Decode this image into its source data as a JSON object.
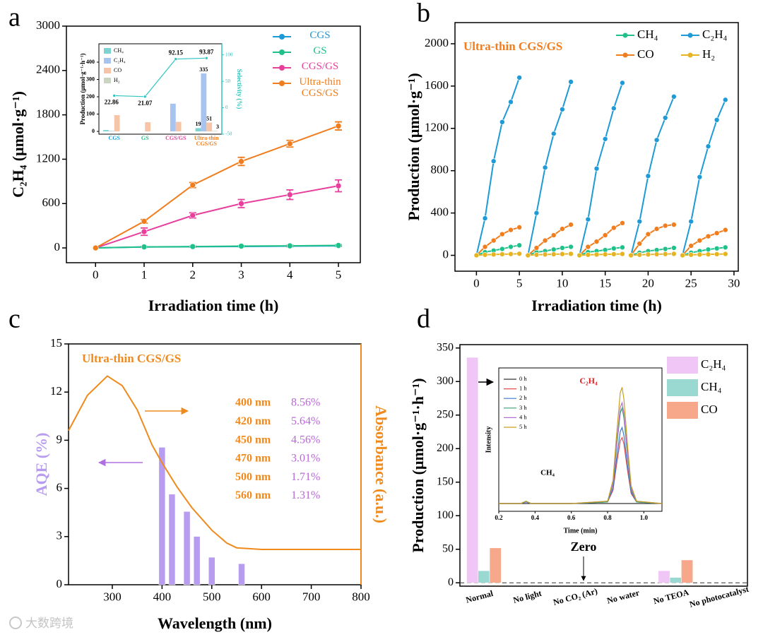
{
  "chart_data": [
    {
      "type": "line",
      "label": "a",
      "xlabel": "Irradiation time (h)",
      "ylabel": "C₂H₄ (μmol·g⁻¹)",
      "x": [
        0,
        1,
        2,
        3,
        4,
        5
      ],
      "xlim": [
        -0.6,
        5.45
      ],
      "xticks": [
        0,
        1,
        2,
        3,
        4,
        5
      ],
      "ylim": [
        -200,
        3000
      ],
      "yticks": [
        0,
        600,
        1200,
        1800,
        2400,
        3000
      ],
      "markers": true,
      "legend": "upper right",
      "series": [
        {
          "name": "CGS",
          "color": "#1e9ad6",
          "values": [
            0,
            12,
            16,
            20,
            24,
            28
          ],
          "errors": [
            0,
            5,
            6,
            6,
            8,
            8
          ]
        },
        {
          "name": "GS",
          "color": "#20c08a",
          "values": [
            0,
            14,
            18,
            24,
            28,
            34
          ],
          "errors": [
            0,
            5,
            6,
            7,
            8,
            9
          ]
        },
        {
          "name": "CGS/GS",
          "color": "#e83e9c",
          "values": [
            0,
            220,
            440,
            600,
            720,
            840
          ],
          "errors": [
            0,
            50,
            35,
            55,
            65,
            80
          ]
        },
        {
          "name": "Ultra-thin CGS/GS",
          "color": "#f07d1e",
          "values": [
            0,
            360,
            850,
            1170,
            1410,
            1650
          ],
          "errors": [
            0,
            25,
            35,
            55,
            45,
            55
          ]
        }
      ]
    },
    {
      "type": "bar",
      "categories": [
        "CGS",
        "GS",
        "CGS/GS",
        "Ultra-thin CGS/GS"
      ],
      "category_colors": [
        "#1e9ad6",
        "#20c08a",
        "#e83e9c",
        "#f07d1e"
      ],
      "ylabel": "Production (μmol·g⁻¹·h⁻¹)",
      "y2label": "Selectivity (%)",
      "ylim": [
        -16,
        506
      ],
      "yticks": [
        0,
        100,
        200,
        300,
        400
      ],
      "y2lim": [
        -50,
        121
      ],
      "y2ticks": [
        -50,
        0,
        50,
        100
      ],
      "markers": true,
      "legend": "upper left",
      "series": [
        {
          "name": "CH₄",
          "color": "#7dd3cf",
          "values": [
            8,
            0,
            0,
            19
          ],
          "value_labels": [
            null,
            null,
            null,
            "19"
          ]
        },
        {
          "name": "C₂H₄",
          "color": "#a7c3f0",
          "values": [
            3,
            0,
            160,
            335
          ],
          "value_labels": [
            null,
            null,
            null,
            "335"
          ]
        },
        {
          "name": "CO",
          "color": "#f6c4a6",
          "values": [
            94,
            53,
            55,
            51
          ],
          "value_labels": [
            null,
            null,
            null,
            "51"
          ]
        },
        {
          "name": "H₂",
          "color": "#c9d5c2",
          "values": [
            0,
            0,
            0,
            3
          ],
          "value_labels": [
            null,
            null,
            null,
            "3"
          ]
        },
        {
          "type": "line",
          "axis": "y2",
          "color": "#2ec4c0",
          "values": [
            22.86,
            21.07,
            92.15,
            93.87
          ],
          "value_labels": [
            "22.86",
            "21.07",
            "92.15",
            "93.87"
          ]
        }
      ]
    },
    {
      "type": "line",
      "label": "b",
      "xlabel": "Irradiation time (h)",
      "ylabel": "Production (μmol·g⁻¹)",
      "annotations": [
        "Ultra-thin CGS/GS"
      ],
      "x": [
        0,
        1,
        2,
        3,
        4,
        5,
        6,
        7,
        8,
        9,
        10,
        11,
        12,
        13,
        14,
        15,
        16,
        17,
        18,
        19,
        20,
        21,
        22,
        23,
        24,
        25,
        26,
        27,
        28,
        29
      ],
      "cycles": 5,
      "xlim": [
        -2.5,
        30.5
      ],
      "xticks": [
        0,
        5,
        10,
        15,
        20,
        25,
        30
      ],
      "ylim": [
        -150,
        2200
      ],
      "yticks": [
        0,
        400,
        800,
        1200,
        1600,
        2000
      ],
      "markers": true,
      "legend": "upper right",
      "series": [
        {
          "name": "CH₄",
          "color": "#20c08a",
          "values": [
            0,
            30,
            45,
            60,
            80,
            95,
            0,
            30,
            40,
            55,
            70,
            80,
            0,
            30,
            40,
            50,
            65,
            75,
            0,
            25,
            40,
            50,
            60,
            70,
            0,
            25,
            40,
            55,
            65,
            75
          ]
        },
        {
          "name": "C₂H₄",
          "color": "#1e9ad6",
          "values": [
            0,
            350,
            890,
            1260,
            1450,
            1680,
            0,
            400,
            830,
            1150,
            1380,
            1640,
            0,
            340,
            820,
            1100,
            1390,
            1630,
            0,
            320,
            750,
            1090,
            1300,
            1500,
            0,
            320,
            740,
            1030,
            1280,
            1470
          ]
        },
        {
          "name": "CO",
          "color": "#f07d1e",
          "values": [
            0,
            80,
            140,
            200,
            240,
            265,
            0,
            70,
            140,
            190,
            250,
            290,
            0,
            80,
            130,
            190,
            260,
            305,
            0,
            110,
            200,
            250,
            280,
            290,
            0,
            90,
            140,
            180,
            210,
            240
          ]
        },
        {
          "name": "H₂",
          "color": "#e6b422",
          "values": [
            0,
            5,
            8,
            10,
            12,
            15,
            0,
            5,
            8,
            10,
            12,
            14,
            0,
            5,
            7,
            9,
            11,
            13,
            0,
            5,
            8,
            10,
            12,
            14,
            0,
            5,
            7,
            9,
            11,
            13
          ]
        }
      ]
    },
    {
      "type": "bar",
      "label": "c",
      "xlabel": "Wavelength (nm)",
      "ylabel": "AQE (%)",
      "y2label": "Absorbance (a.u.)",
      "annotations": [
        "Ultra-thin CGS/GS"
      ],
      "xlim": [
        212,
        800
      ],
      "xticks": [
        300,
        400,
        500,
        600,
        700,
        800
      ],
      "ylim": [
        0,
        15
      ],
      "yticks": [
        0,
        3,
        6,
        9,
        12,
        15
      ],
      "y2lim": [
        0,
        1.5
      ],
      "series": [
        {
          "color": "#b79cf0",
          "x": [
            400,
            420,
            450,
            470,
            500,
            560
          ],
          "x_labels": [
            "400 nm",
            "420 nm",
            "450 nm",
            "470 nm",
            "500 nm",
            "560 nm"
          ],
          "values": [
            8.56,
            5.64,
            4.56,
            3.01,
            1.71,
            1.31
          ],
          "value_labels": [
            "8.56%",
            "5.64%",
            "4.56%",
            "3.01%",
            "1.71%",
            "1.31%"
          ]
        },
        {
          "type": "line",
          "axis": "y2",
          "color": "#f08a1c",
          "x": [
            212,
            250,
            290,
            320,
            350,
            380,
            400,
            430,
            460,
            500,
            530,
            550,
            600,
            700,
            800
          ],
          "values": [
            0.96,
            1.18,
            1.3,
            1.24,
            1.09,
            0.87,
            0.76,
            0.61,
            0.48,
            0.34,
            0.26,
            0.23,
            0.22,
            0.22,
            0.22
          ]
        }
      ]
    },
    {
      "type": "bar",
      "label": "d",
      "ylabel": "Production (μmol·g⁻¹·h⁻¹)",
      "annotations": [
        "Zero"
      ],
      "categories": [
        "Normal",
        "No light",
        "No CO₂ (Ar)",
        "No water",
        "No TEOA",
        "No photocatalyst"
      ],
      "ylim": [
        -5,
        355
      ],
      "yticks": [
        0,
        50,
        100,
        150,
        200,
        250,
        300,
        350
      ],
      "baseline": "dashed",
      "legend": "upper right",
      "series": [
        {
          "name": "C₂H₄",
          "color": "#f0c6f6",
          "values": [
            336,
            0,
            0,
            0,
            18,
            0
          ]
        },
        {
          "name": "CH₄",
          "color": "#9ad8d2",
          "values": [
            18,
            0,
            0,
            0,
            8,
            0
          ]
        },
        {
          "name": "CO",
          "color": "#f7a88a",
          "values": [
            52,
            0,
            0,
            0,
            34,
            0
          ]
        }
      ]
    },
    {
      "type": "line",
      "xlabel": "Time (min)",
      "ylabel": "Intensity",
      "annotations": [
        "C₂H₄",
        "CH₄"
      ],
      "x": [
        0.2,
        0.32,
        0.35,
        0.38,
        0.6,
        0.8,
        0.83,
        0.85,
        0.87,
        0.88,
        0.89,
        0.91,
        0.93,
        0.96,
        1.1
      ],
      "xlim": [
        0.2,
        1.1
      ],
      "xticks": [
        0.2,
        0.4,
        0.6,
        0.8,
        {
          "value": 1,
          "label": "1.0"
        }
      ],
      "ylim": [
        -10,
        175
      ],
      "legend": "upper left",
      "series": [
        {
          "name": "0 h",
          "color": "#333333",
          "values": [
            0,
            0,
            0,
            0,
            0,
            0,
            0,
            0,
            0,
            0,
            0,
            0,
            0,
            0,
            0
          ]
        },
        {
          "name": "1 h",
          "color": "#e05050",
          "values": [
            0,
            0,
            2,
            0,
            0,
            2,
            17,
            51,
            81,
            85,
            77,
            43,
            13,
            2,
            0
          ]
        },
        {
          "name": "2 h",
          "color": "#3a78d0",
          "values": [
            0,
            0,
            2,
            0,
            0,
            2,
            20,
            59,
            93,
            98,
            88,
            49,
            15,
            2,
            0
          ]
        },
        {
          "name": "3 h",
          "color": "#3aa070",
          "values": [
            0,
            0,
            3,
            0,
            0,
            2,
            25,
            74,
            117,
            123,
            111,
            62,
            18,
            2,
            0
          ]
        },
        {
          "name": "4 h",
          "color": "#b070d0",
          "values": [
            0,
            0,
            3,
            0,
            0,
            3,
            26,
            78,
            124,
            130,
            117,
            65,
            20,
            3,
            0
          ]
        },
        {
          "name": "5 h",
          "color": "#c8a020",
          "values": [
            0,
            0,
            3,
            0,
            0,
            3,
            30,
            90,
            143,
            150,
            135,
            75,
            23,
            3,
            0
          ]
        }
      ]
    }
  ],
  "watermark": "大数跨境"
}
